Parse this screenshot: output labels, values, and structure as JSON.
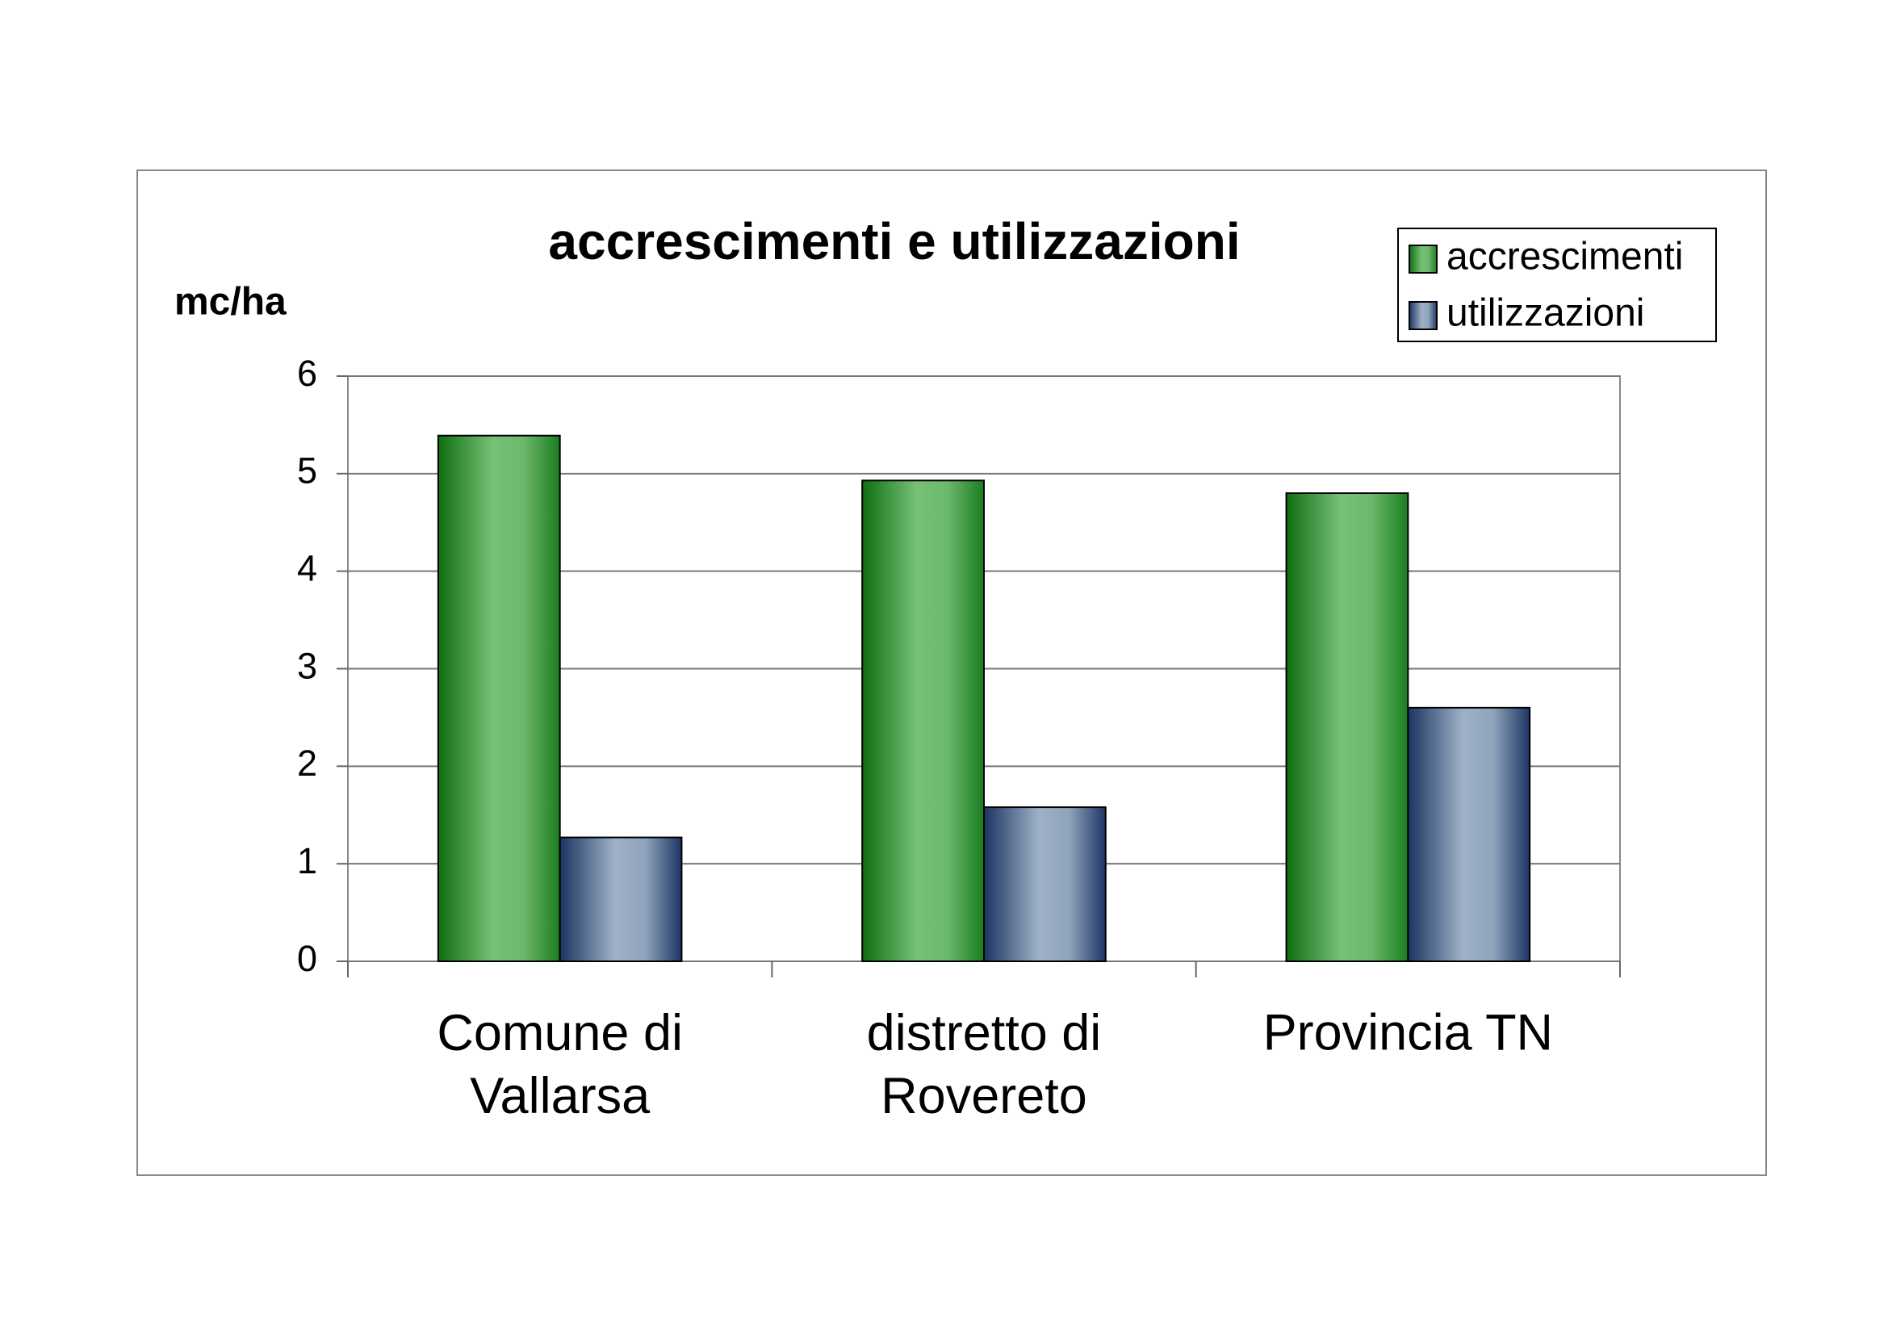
{
  "chart_data": {
    "type": "bar",
    "title": "accrescimenti e utilizzazioni",
    "y_label": "mc/ha",
    "categories": [
      "Comune di Vallarsa",
      "distretto di Rovereto",
      "Provincia TN"
    ],
    "series": [
      {
        "name": "accrescimenti",
        "color": "#5cb35c",
        "values": [
          5.39,
          4.93,
          4.8
        ]
      },
      {
        "name": "utilizzazioni",
        "color": "#8ea3ba",
        "values": [
          1.27,
          1.58,
          2.6
        ]
      }
    ],
    "ylim": [
      0,
      6
    ],
    "yticks": [
      0,
      1,
      2,
      3,
      4,
      5,
      6
    ],
    "grid": true,
    "legend": "top-right"
  }
}
